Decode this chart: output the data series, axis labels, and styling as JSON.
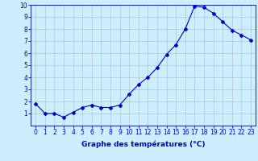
{
  "x": [
    0,
    1,
    2,
    3,
    4,
    5,
    6,
    7,
    8,
    9,
    10,
    11,
    12,
    13,
    14,
    15,
    16,
    17,
    18,
    19,
    20,
    21,
    22,
    23
  ],
  "y": [
    1.8,
    1.0,
    1.0,
    0.7,
    1.1,
    1.5,
    1.7,
    1.5,
    1.5,
    1.7,
    2.6,
    3.4,
    4.0,
    4.8,
    5.9,
    6.7,
    8.0,
    9.9,
    9.8,
    9.3,
    8.6,
    7.9,
    7.5,
    7.1
  ],
  "line_color": "#0000cc",
  "marker": "D",
  "marker_size": 2.0,
  "bg_color": "#cceeff",
  "grid_color": "#aabbbb",
  "xlabel": "Graphe des températures (°C)",
  "xlim": [
    -0.5,
    23.5
  ],
  "ylim": [
    0,
    10
  ],
  "yticks": [
    1,
    2,
    3,
    4,
    5,
    6,
    7,
    8,
    9,
    10
  ],
  "xticks": [
    0,
    1,
    2,
    3,
    4,
    5,
    6,
    7,
    8,
    9,
    10,
    11,
    12,
    13,
    14,
    15,
    16,
    17,
    18,
    19,
    20,
    21,
    22,
    23
  ],
  "tick_label_fontsize": 5.5,
  "xlabel_fontsize": 6.5,
  "xlabel_color": "#0000cc",
  "tick_color": "#0000cc",
  "spine_color": "#0000cc",
  "line_width": 0.8
}
